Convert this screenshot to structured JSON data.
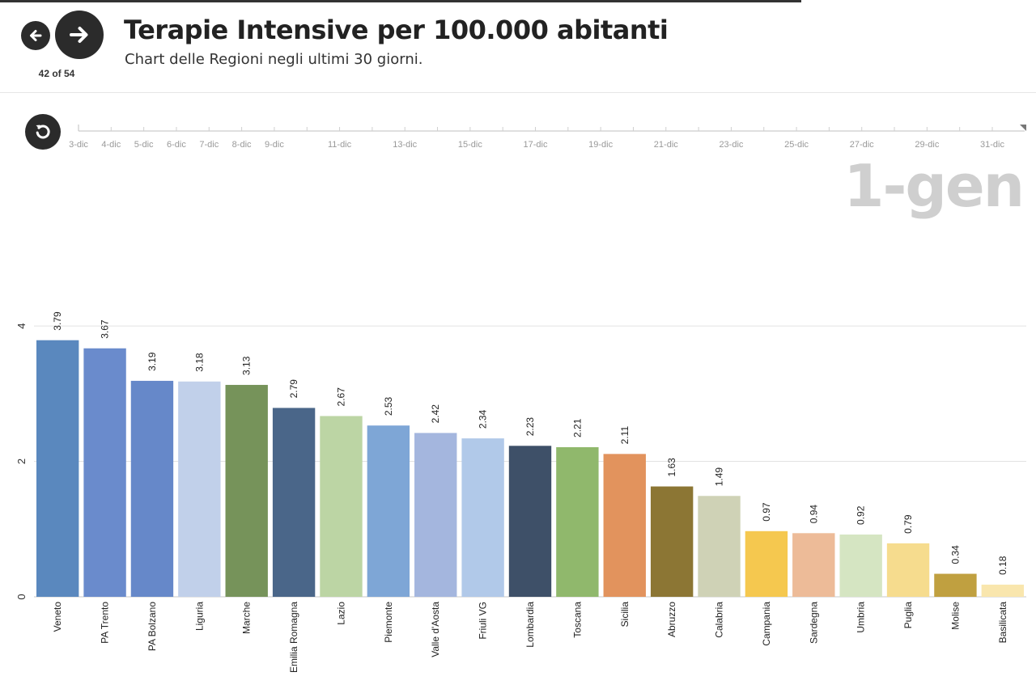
{
  "header": {
    "title": "Terapie Intensive per 100.000 abitanti",
    "subtitle": "Chart delle Regioni negli ultimi 30 giorni.",
    "counter": "42 of 54",
    "current_date": "1-gen"
  },
  "icons": {
    "prev": "arrow-left-icon",
    "next": "arrow-right-icon",
    "replay": "replay-icon"
  },
  "timeline": {
    "ticks": [
      "3-dic",
      "4-dic",
      "5-dic",
      "6-dic",
      "7-dic",
      "8-dic",
      "9-dic",
      "11-dic",
      "13-dic",
      "15-dic",
      "17-dic",
      "19-dic",
      "21-dic",
      "23-dic",
      "25-dic",
      "27-dic",
      "29-dic",
      "31-dic"
    ]
  },
  "chart_data": {
    "type": "bar",
    "title": "Terapie Intensive per 100.000 abitanti",
    "subtitle": "Chart delle Regioni negli ultimi 30 giorni.",
    "xlabel": "",
    "ylabel": "",
    "ylim": [
      0,
      4.3
    ],
    "yticks": [
      0,
      2,
      4
    ],
    "grid": true,
    "categories": [
      "Veneto",
      "PA Trento",
      "PA Bolzano",
      "Liguria",
      "Marche",
      "Emilia Romagna",
      "Lazio",
      "Piemonte",
      "Valle d'Aosta",
      "Friuli VG",
      "Lombardia",
      "Toscana",
      "Sicilia",
      "Abruzzo",
      "Calabria",
      "Campania",
      "Sardegna",
      "Umbria",
      "Puglia",
      "Molise",
      "Basilicata"
    ],
    "values": [
      3.79,
      3.67,
      3.19,
      3.18,
      3.13,
      2.79,
      2.67,
      2.53,
      2.42,
      2.34,
      2.23,
      2.21,
      2.11,
      1.63,
      1.49,
      0.97,
      0.94,
      0.92,
      0.79,
      0.34,
      0.18
    ],
    "value_labels": [
      "3.79",
      "3.67",
      "3.19",
      "3.18",
      "3.13",
      "2.79",
      "2.67",
      "2.53",
      "2.42",
      "2.34",
      "2.23",
      "2.21",
      "2.11",
      "1.63",
      "1.49",
      "0.97",
      "0.94",
      "0.92",
      "0.79",
      "0.34",
      "0.18"
    ],
    "colors": [
      "#5a88be",
      "#6a8bcc",
      "#6688c9",
      "#c1d0ea",
      "#76935a",
      "#4a6689",
      "#bcd5a4",
      "#7ea6d6",
      "#a4b6de",
      "#b1c9e9",
      "#3e5068",
      "#90b86c",
      "#e2935d",
      "#8c7634",
      "#cfd2b6",
      "#f5c84f",
      "#edbb98",
      "#d5e5c2",
      "#f6dc8e",
      "#c0a040",
      "#f9e6ad"
    ]
  }
}
